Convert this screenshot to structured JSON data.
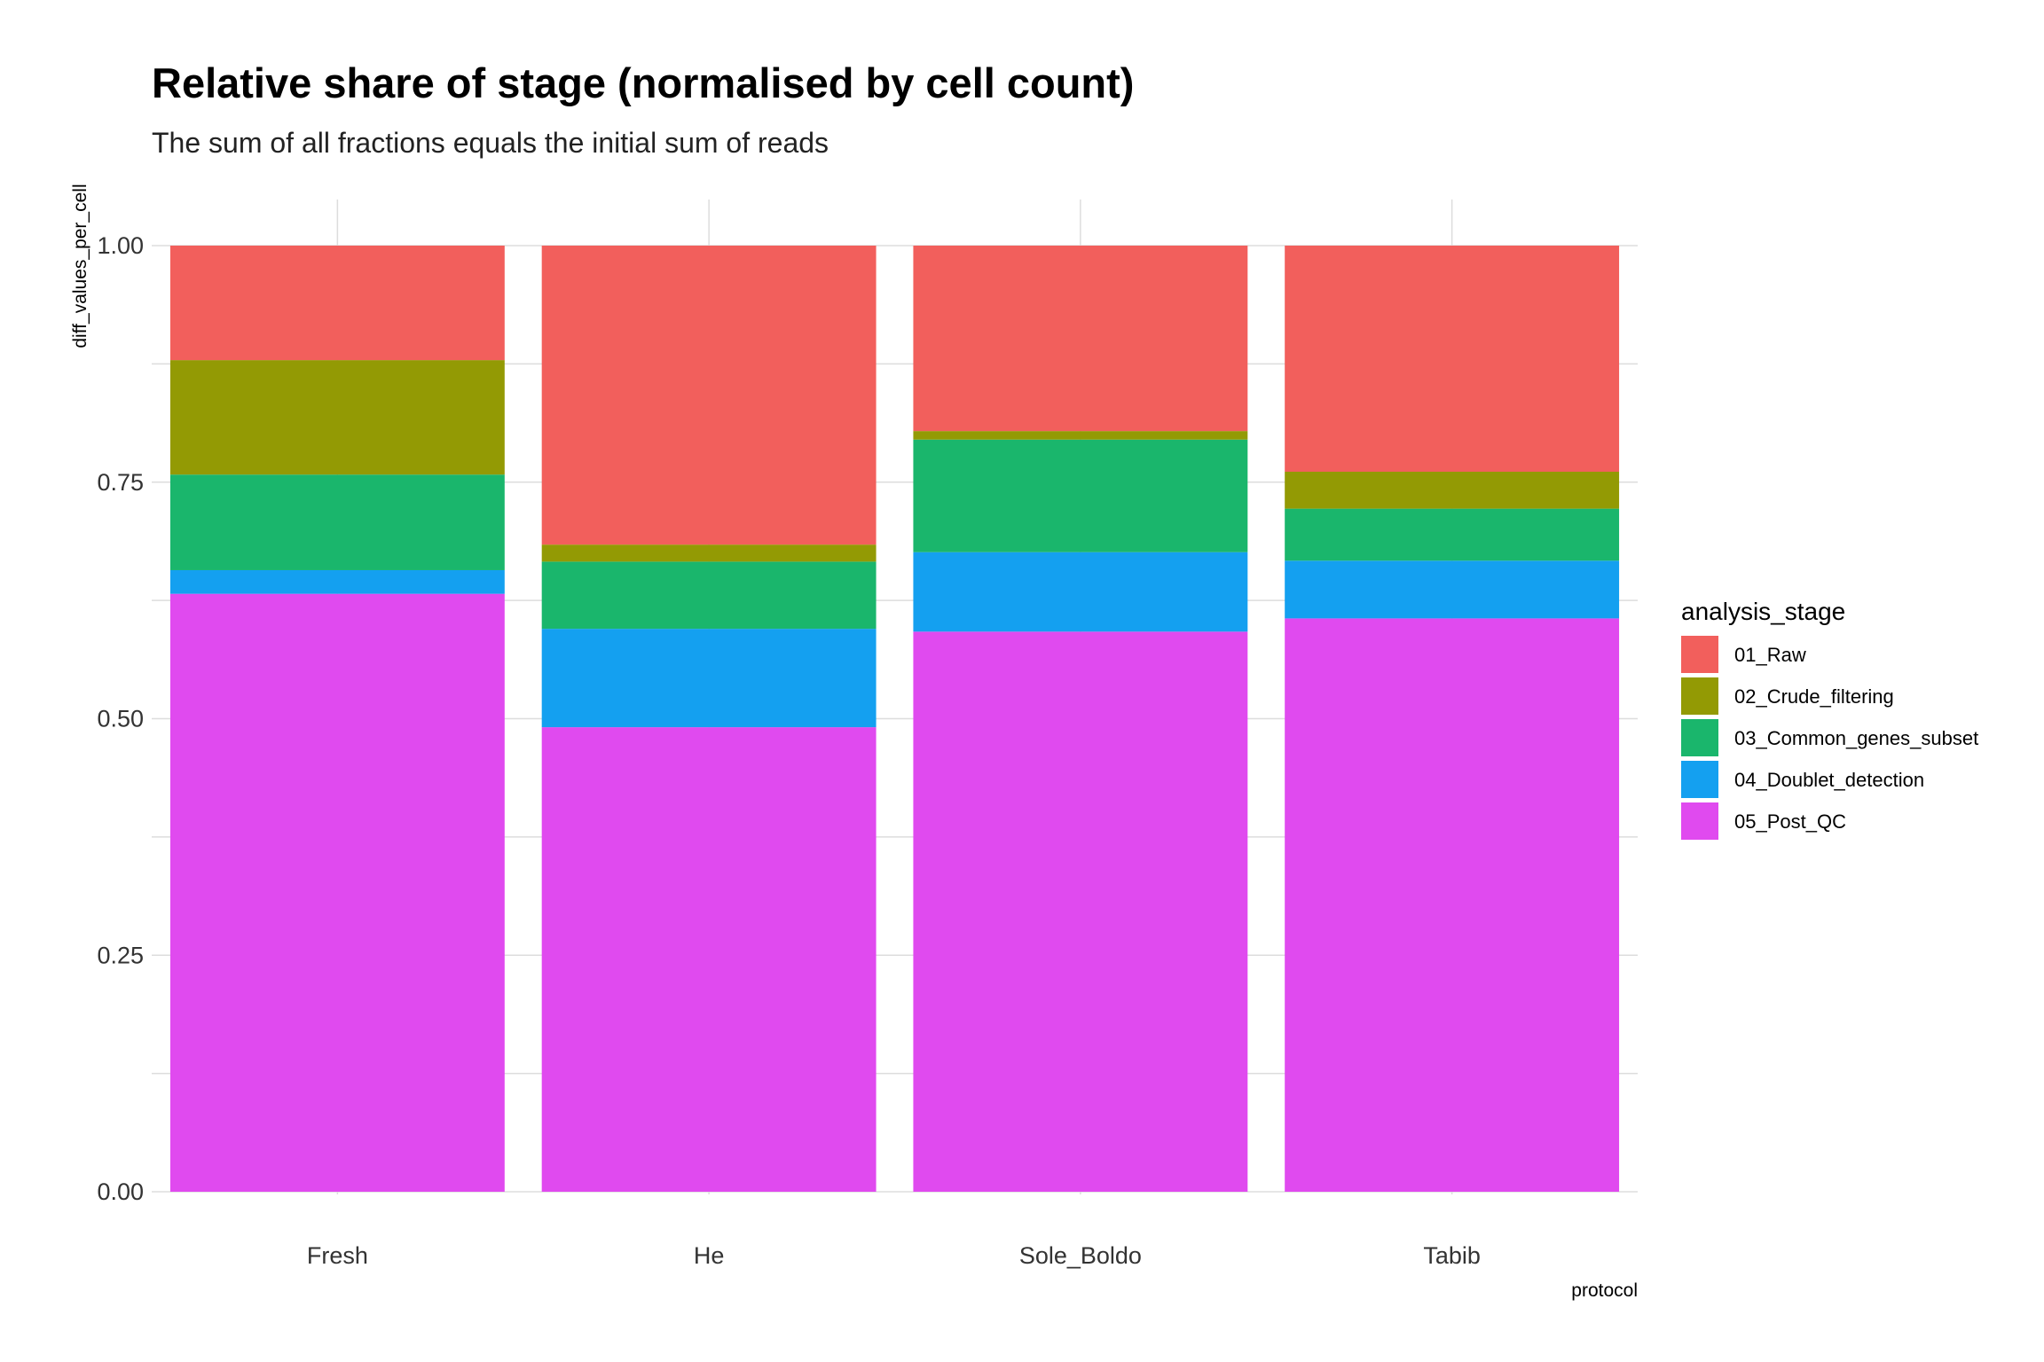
{
  "chart_data": {
    "type": "bar",
    "stacked": true,
    "title": "Relative share of stage (normalised by cell count)",
    "subtitle": "The sum of all fractions equals the initial sum of reads",
    "xlabel": "protocol",
    "ylabel": "diff_values_per_cell",
    "categories": [
      "Fresh",
      "He",
      "Sole_Boldo",
      "Tabib"
    ],
    "ylim": [
      0,
      1
    ],
    "yticks": [
      "0.00",
      "0.25",
      "0.50",
      "0.75",
      "1.00"
    ],
    "grid": true,
    "legend": {
      "title": "analysis_stage",
      "position": "right"
    },
    "series": [
      {
        "name": "05_Post_QC",
        "color": "#E04AEF",
        "values": [
          0.632,
          0.491,
          0.592,
          0.606
        ]
      },
      {
        "name": "04_Doublet_detection",
        "color": "#14A0F0",
        "values": [
          0.025,
          0.104,
          0.084,
          0.061
        ]
      },
      {
        "name": "03_Common_genes_subset",
        "color": "#1AB66C",
        "values": [
          0.101,
          0.071,
          0.119,
          0.055
        ]
      },
      {
        "name": "02_Crude_filtering",
        "color": "#939A04",
        "values": [
          0.121,
          0.018,
          0.009,
          0.039
        ]
      },
      {
        "name": "01_Raw",
        "color": "#F25F5C",
        "values": [
          0.121,
          0.316,
          0.196,
          0.239
        ]
      }
    ],
    "legend_order": [
      "01_Raw",
      "02_Crude_filtering",
      "03_Common_genes_subset",
      "04_Doublet_detection",
      "05_Post_QC"
    ]
  }
}
